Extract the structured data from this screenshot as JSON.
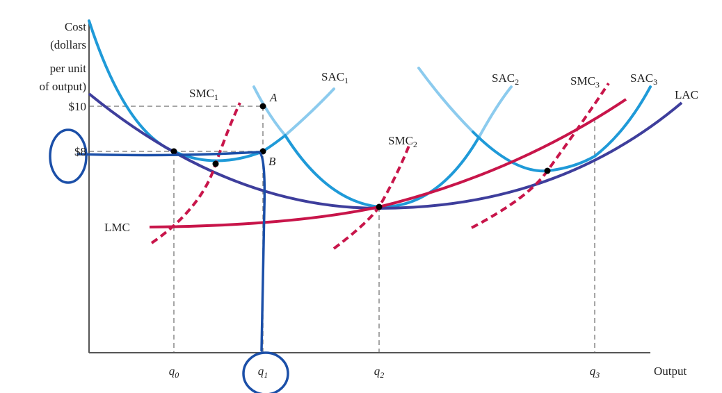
{
  "axis": {
    "y_label": [
      "Cost",
      "(dollars",
      "per unit",
      "of output)"
    ],
    "x_label": "Output",
    "y_ticks": [
      "$10",
      "$8"
    ],
    "x_ticks": [
      {
        "text": "q",
        "sub": "0"
      },
      {
        "text": "q",
        "sub": "1"
      },
      {
        "text": "q",
        "sub": "2"
      },
      {
        "text": "q",
        "sub": "3"
      }
    ]
  },
  "curves": [
    {
      "text": "SMC",
      "sub": "1"
    },
    {
      "text": "SAC",
      "sub": "1"
    },
    {
      "text": "SMC",
      "sub": "2"
    },
    {
      "text": "SAC",
      "sub": "2"
    },
    {
      "text": "SMC",
      "sub": "3"
    },
    {
      "text": "SAC",
      "sub": "3"
    },
    {
      "text": "LAC"
    },
    {
      "text": "LMC"
    }
  ],
  "points": [
    "A",
    "B"
  ]
}
